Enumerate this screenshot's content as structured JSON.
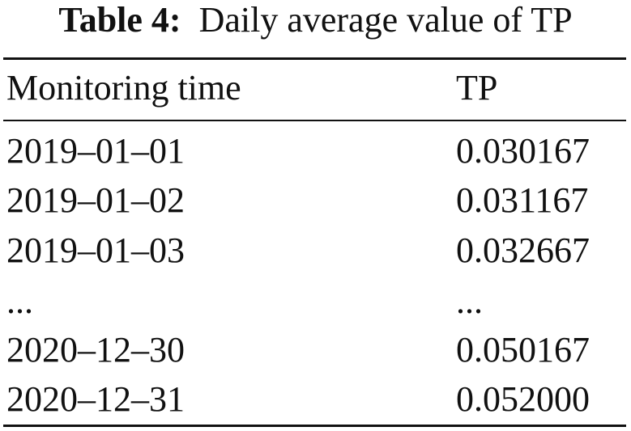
{
  "caption": {
    "label": "Table 4:",
    "text": "Daily average value of TP"
  },
  "header": [
    "Monitoring time",
    "TP"
  ],
  "rows": [
    [
      "2019–01–01",
      "0.030167"
    ],
    [
      "2019–01–02",
      "0.031167"
    ],
    [
      "2019–01–03",
      "0.032667"
    ],
    [
      "...",
      "..."
    ],
    [
      "2020–12–30",
      "0.050167"
    ],
    [
      "2020–12–31",
      "0.052000"
    ]
  ]
}
